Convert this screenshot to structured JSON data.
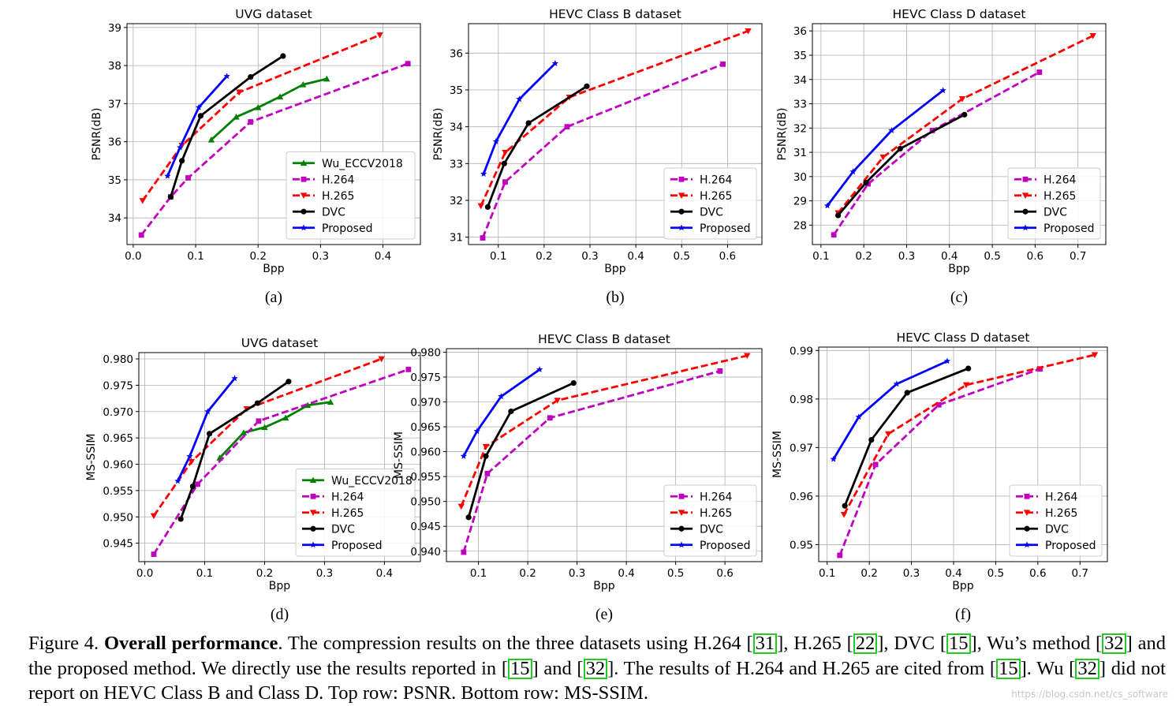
{
  "chart_data": [
    {
      "type": "line",
      "title": "UVG dataset",
      "xlabel": "Bpp",
      "ylabel": "PSNR(dB)",
      "panel_label": "(a)",
      "xlim": [
        -0.01,
        0.46
      ],
      "ylim": [
        33.3,
        39.1
      ],
      "xticks": [
        0.0,
        0.1,
        0.2,
        0.3,
        0.4
      ],
      "yticks": [
        34,
        35,
        36,
        37,
        38,
        39
      ],
      "x_decimals": 1,
      "y_decimals": 0,
      "grid": true,
      "legend_position": "lower-right",
      "series": [
        {
          "name": "Wu_ECCV2018",
          "color": "#008000",
          "dash": "solid",
          "marker": "triangle-up",
          "x": [
            0.125,
            0.165,
            0.2,
            0.235,
            0.272,
            0.31
          ],
          "y": [
            36.05,
            36.65,
            36.9,
            37.18,
            37.5,
            37.65
          ]
        },
        {
          "name": "H.264",
          "color": "#bf00bf",
          "dash": "dashed",
          "marker": "square",
          "x": [
            0.013,
            0.06,
            0.088,
            0.188,
            0.44
          ],
          "y": [
            33.55,
            34.55,
            35.05,
            36.52,
            38.05
          ]
        },
        {
          "name": "H.265",
          "color": "#ff0000",
          "dash": "dashed",
          "marker": "triangle-down",
          "x": [
            0.015,
            0.078,
            0.17,
            0.395
          ],
          "y": [
            34.45,
            35.9,
            37.3,
            38.8
          ]
        },
        {
          "name": "DVC",
          "color": "#000000",
          "dash": "solid",
          "marker": "circle",
          "x": [
            0.06,
            0.078,
            0.108,
            0.188,
            0.24
          ],
          "y": [
            34.55,
            35.5,
            36.68,
            37.7,
            38.25
          ]
        },
        {
          "name": "Proposed",
          "color": "#0000ff",
          "dash": "solid",
          "marker": "star",
          "x": [
            0.055,
            0.075,
            0.105,
            0.15
          ],
          "y": [
            35.1,
            35.85,
            36.9,
            37.72
          ]
        }
      ]
    },
    {
      "type": "line",
      "title": "HEVC Class B dataset",
      "xlabel": "Bpp",
      "ylabel": "PSNR(dB)",
      "panel_label": "(b)",
      "xlim": [
        0.035,
        0.675
      ],
      "ylim": [
        30.8,
        36.8
      ],
      "xticks": [
        0.1,
        0.2,
        0.3,
        0.4,
        0.5,
        0.6
      ],
      "yticks": [
        31,
        32,
        33,
        34,
        35,
        36
      ],
      "x_decimals": 1,
      "y_decimals": 0,
      "grid": true,
      "legend_position": "lower-right",
      "series": [
        {
          "name": "H.264",
          "color": "#bf00bf",
          "dash": "dashed",
          "marker": "square",
          "x": [
            0.066,
            0.115,
            0.25,
            0.59
          ],
          "y": [
            30.98,
            32.5,
            34.0,
            35.7
          ]
        },
        {
          "name": "H.265",
          "color": "#ff0000",
          "dash": "dashed",
          "marker": "triangle-down",
          "x": [
            0.062,
            0.115,
            0.255,
            0.645
          ],
          "y": [
            31.85,
            33.3,
            34.8,
            36.6
          ]
        },
        {
          "name": "DVC",
          "color": "#000000",
          "dash": "solid",
          "marker": "circle",
          "x": [
            0.077,
            0.113,
            0.166,
            0.293
          ],
          "y": [
            31.82,
            33.0,
            34.1,
            35.1
          ]
        },
        {
          "name": "Proposed",
          "color": "#0000ff",
          "dash": "solid",
          "marker": "star",
          "x": [
            0.068,
            0.095,
            0.146,
            0.224
          ],
          "y": [
            32.72,
            33.6,
            34.75,
            35.72
          ]
        }
      ]
    },
    {
      "type": "line",
      "title": "HEVC Class D dataset",
      "xlabel": "Bpp",
      "ylabel": "PSNR(dB)",
      "panel_label": "(c)",
      "xlim": [
        0.08,
        0.765
      ],
      "ylim": [
        27.2,
        36.3
      ],
      "xticks": [
        0.1,
        0.2,
        0.3,
        0.4,
        0.5,
        0.6,
        0.7
      ],
      "yticks": [
        28,
        29,
        30,
        31,
        32,
        33,
        34,
        35,
        36
      ],
      "x_decimals": 1,
      "y_decimals": 0,
      "grid": true,
      "legend_position": "lower-right",
      "series": [
        {
          "name": "H.264",
          "color": "#bf00bf",
          "dash": "dashed",
          "marker": "square",
          "x": [
            0.13,
            0.21,
            0.36,
            0.61
          ],
          "y": [
            27.6,
            29.7,
            31.9,
            34.3
          ]
        },
        {
          "name": "H.265",
          "color": "#ff0000",
          "dash": "dashed",
          "marker": "triangle-down",
          "x": [
            0.14,
            0.245,
            0.43,
            0.735
          ],
          "y": [
            28.5,
            30.8,
            33.2,
            35.8
          ]
        },
        {
          "name": "DVC",
          "color": "#000000",
          "dash": "solid",
          "marker": "circle",
          "x": [
            0.14,
            0.205,
            0.285,
            0.435
          ],
          "y": [
            28.4,
            29.75,
            31.15,
            32.55
          ]
        },
        {
          "name": "Proposed",
          "color": "#0000ff",
          "dash": "solid",
          "marker": "star",
          "x": [
            0.115,
            0.175,
            0.265,
            0.385
          ],
          "y": [
            28.8,
            30.2,
            31.9,
            33.55
          ]
        }
      ]
    },
    {
      "type": "line",
      "title": "UVG dataset",
      "xlabel": "Bpp",
      "ylabel": "MS-SSIM",
      "panel_label": "(d)",
      "xlim": [
        -0.01,
        0.46
      ],
      "ylim": [
        0.9415,
        0.9812
      ],
      "xticks": [
        0.0,
        0.1,
        0.2,
        0.3,
        0.4
      ],
      "yticks": [
        0.945,
        0.95,
        0.955,
        0.96,
        0.965,
        0.97,
        0.975,
        0.98
      ],
      "x_decimals": 1,
      "y_decimals": 3,
      "grid": true,
      "legend_position": "lower-right",
      "series": [
        {
          "name": "Wu_ECCV2018",
          "color": "#008000",
          "dash": "solid",
          "marker": "triangle-up",
          "x": [
            0.125,
            0.165,
            0.2,
            0.235,
            0.272,
            0.31
          ],
          "y": [
            0.9612,
            0.966,
            0.967,
            0.9688,
            0.9712,
            0.9718
          ]
        },
        {
          "name": "H.264",
          "color": "#bf00bf",
          "dash": "dashed",
          "marker": "square",
          "x": [
            0.015,
            0.088,
            0.19,
            0.44
          ],
          "y": [
            0.9429,
            0.9562,
            0.9682,
            0.978
          ]
        },
        {
          "name": "H.265",
          "color": "#ff0000",
          "dash": "dashed",
          "marker": "triangle-down",
          "x": [
            0.015,
            0.078,
            0.17,
            0.395
          ],
          "y": [
            0.9502,
            0.9605,
            0.9705,
            0.98
          ]
        },
        {
          "name": "DVC",
          "color": "#000000",
          "dash": "solid",
          "marker": "circle",
          "x": [
            0.06,
            0.08,
            0.108,
            0.188,
            0.24
          ],
          "y": [
            0.9496,
            0.9558,
            0.9658,
            0.9716,
            0.9757
          ]
        },
        {
          "name": "Proposed",
          "color": "#0000ff",
          "dash": "solid",
          "marker": "star",
          "x": [
            0.055,
            0.075,
            0.105,
            0.15
          ],
          "y": [
            0.9568,
            0.9615,
            0.97,
            0.9763
          ]
        }
      ]
    },
    {
      "type": "line",
      "title": "HEVC Class B dataset",
      "xlabel": "Bpp",
      "ylabel": "MS-SSIM",
      "panel_label": "(e)",
      "xlim": [
        0.035,
        0.675
      ],
      "ylim": [
        0.9379,
        0.9807
      ],
      "xticks": [
        0.1,
        0.2,
        0.3,
        0.4,
        0.5,
        0.6
      ],
      "yticks": [
        0.94,
        0.945,
        0.95,
        0.955,
        0.96,
        0.965,
        0.97,
        0.975,
        0.98
      ],
      "x_decimals": 1,
      "y_decimals": 3,
      "grid": true,
      "legend_position": "lower-right",
      "series": [
        {
          "name": "H.264",
          "color": "#bf00bf",
          "dash": "dashed",
          "marker": "square",
          "x": [
            0.07,
            0.118,
            0.245,
            0.59
          ],
          "y": [
            0.9398,
            0.9556,
            0.9668,
            0.9762
          ]
        },
        {
          "name": "H.265",
          "color": "#ff0000",
          "dash": "dashed",
          "marker": "triangle-down",
          "x": [
            0.065,
            0.115,
            0.26,
            0.645
          ],
          "y": [
            0.949,
            0.961,
            0.9703,
            0.9793
          ]
        },
        {
          "name": "DVC",
          "color": "#000000",
          "dash": "solid",
          "marker": "circle",
          "x": [
            0.08,
            0.115,
            0.166,
            0.293
          ],
          "y": [
            0.9468,
            0.9591,
            0.9681,
            0.9738
          ]
        },
        {
          "name": "Proposed",
          "color": "#0000ff",
          "dash": "solid",
          "marker": "star",
          "x": [
            0.07,
            0.097,
            0.146,
            0.224
          ],
          "y": [
            0.9591,
            0.9641,
            0.9711,
            0.9765
          ]
        }
      ]
    },
    {
      "type": "line",
      "title": "HEVC Class D dataset",
      "xlabel": "Bpp",
      "ylabel": "MS-SSIM",
      "panel_label": "(f)",
      "xlim": [
        0.08,
        0.765
      ],
      "ylim": [
        0.9465,
        0.9907
      ],
      "xticks": [
        0.1,
        0.2,
        0.3,
        0.4,
        0.5,
        0.6,
        0.7
      ],
      "yticks": [
        0.95,
        0.96,
        0.97,
        0.98,
        0.99
      ],
      "x_decimals": 1,
      "y_decimals": 2,
      "grid": true,
      "legend_position": "lower-right",
      "series": [
        {
          "name": "H.264",
          "color": "#bf00bf",
          "dash": "dashed",
          "marker": "square",
          "x": [
            0.13,
            0.215,
            0.365,
            0.605
          ],
          "y": [
            0.9478,
            0.9665,
            0.9788,
            0.9862
          ]
        },
        {
          "name": "H.265",
          "color": "#ff0000",
          "dash": "dashed",
          "marker": "triangle-down",
          "x": [
            0.14,
            0.245,
            0.43,
            0.735
          ],
          "y": [
            0.9562,
            0.9728,
            0.9829,
            0.9891
          ]
        },
        {
          "name": "DVC",
          "color": "#000000",
          "dash": "solid",
          "marker": "circle",
          "x": [
            0.142,
            0.205,
            0.29,
            0.435
          ],
          "y": [
            0.958,
            0.9716,
            0.9813,
            0.9863
          ]
        },
        {
          "name": "Proposed",
          "color": "#0000ff",
          "dash": "solid",
          "marker": "star",
          "x": [
            0.115,
            0.175,
            0.265,
            0.385
          ],
          "y": [
            0.9676,
            0.9763,
            0.9831,
            0.9878
          ]
        }
      ]
    }
  ],
  "caption": {
    "parts": [
      {
        "text": "Figure 4. "
      },
      {
        "text": "Overall performance",
        "bold": true
      },
      {
        "text": ". The compression results on the three datasets using H.264 "
      },
      {
        "ref": "31"
      },
      {
        "text": ", H.265 "
      },
      {
        "ref": "22"
      },
      {
        "text": ", DVC "
      },
      {
        "ref": "15"
      },
      {
        "text": ", Wu’s method "
      },
      {
        "ref": "32"
      },
      {
        "text": " and the proposed method.  We directly use the results reported in "
      },
      {
        "ref": "15"
      },
      {
        "text": " and "
      },
      {
        "ref": "32"
      },
      {
        "text": ".  The results of H.264 and H.265 are cited from "
      },
      {
        "ref": "15"
      },
      {
        "text": ". Wu "
      },
      {
        "ref": "32"
      },
      {
        "text": " did not report on HEVC Class B and Class D. Top row: PSNR. Bottom row: MS-SSIM."
      }
    ]
  },
  "watermark": "https://blog.csdn.net/cs_software"
}
